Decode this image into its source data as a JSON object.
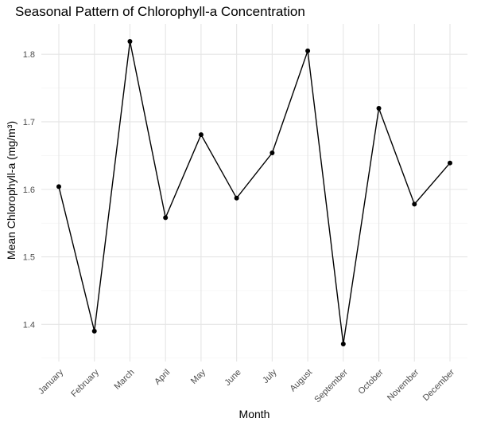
{
  "chart_data": {
    "type": "line",
    "title": "Seasonal Pattern of Chlorophyll-a Concentration",
    "xlabel": "Month",
    "ylabel": "Mean Chlorophyll-a (mg/m³)",
    "categories": [
      "January",
      "February",
      "March",
      "April",
      "May",
      "June",
      "July",
      "August",
      "September",
      "October",
      "November",
      "December"
    ],
    "series": [
      {
        "values": [
          1.604,
          1.39,
          1.819,
          1.558,
          1.681,
          1.587,
          1.654,
          1.805,
          1.371,
          1.72,
          1.578,
          1.639
        ]
      }
    ],
    "ylim": [
      1.345,
      1.845
    ],
    "yticks": [
      1.4,
      1.5,
      1.6,
      1.7,
      1.8
    ],
    "ytick_labels": [
      "1.4",
      "1.5",
      "1.6",
      "1.7",
      "1.8"
    ],
    "grid": true,
    "line_color": "#000000",
    "point_color": "#000000",
    "gridline_color": "#e5e5e5",
    "background_color": "#ffffff"
  }
}
